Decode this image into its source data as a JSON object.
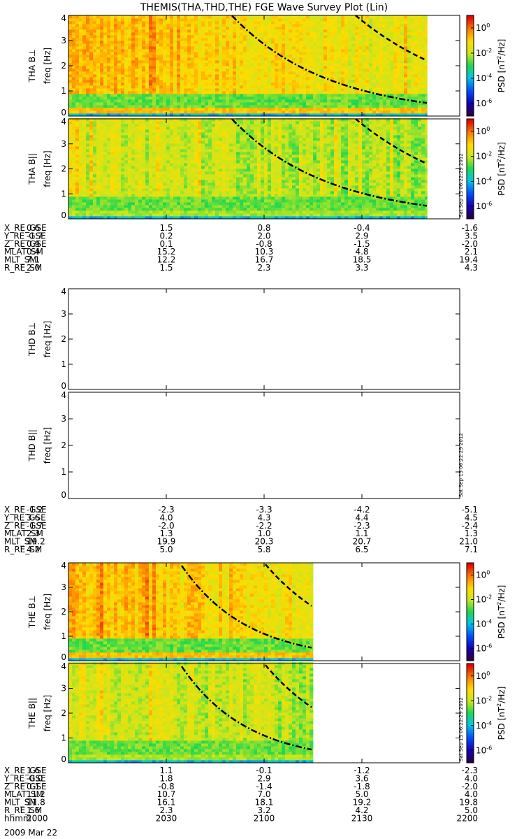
{
  "title": "THEMIS(THA,THD,THE) FGE Wave Survey Plot (Lin)",
  "date_label": "2009 Mar 22",
  "stamp": "Sat Sep 15 06:22:29 2012",
  "colorbar": {
    "label_main": "PSD [nT",
    "label_sup": "2",
    "label_end": "/Hz]",
    "ticks": [
      {
        "base": "10",
        "exp": "0"
      },
      {
        "base": "10",
        "exp": "-2"
      },
      {
        "base": "10",
        "exp": "-4"
      },
      {
        "base": "10",
        "exp": "-6"
      }
    ],
    "scale": "log",
    "range_exp": [
      -7,
      1
    ]
  },
  "chart_data": [
    {
      "type": "heatmap",
      "probe": "THA",
      "ylabel_probe": "THA B⊥",
      "ylabel_unit": "freq [Hz]",
      "ylim": [
        0,
        4
      ],
      "yticks": [
        "0",
        "1",
        "2",
        "3",
        "4"
      ],
      "has_data": true,
      "data_end_time": "2150",
      "colorbar": true,
      "stamp": false
    },
    {
      "type": "heatmap",
      "probe": "THA",
      "ylabel_probe": "THA B||",
      "ylabel_unit": "freq [Hz]",
      "ylim": [
        0,
        4
      ],
      "yticks": [
        "0",
        "1",
        "2",
        "3",
        "4"
      ],
      "has_data": true,
      "data_end_time": "2150",
      "colorbar": true,
      "stamp": true
    },
    {
      "type": "heatmap",
      "probe": "THD",
      "ylabel_probe": "THD B⊥",
      "ylabel_unit": "freq [Hz]",
      "ylim": [
        0,
        4
      ],
      "yticks": [
        "0",
        "1",
        "2",
        "3",
        "4"
      ],
      "has_data": false,
      "colorbar": false,
      "stamp": false
    },
    {
      "type": "heatmap",
      "probe": "THD",
      "ylabel_probe": "THD B||",
      "ylabel_unit": "freq [Hz]",
      "ylim": [
        0,
        4
      ],
      "yticks": [
        "0",
        "1",
        "2",
        "3",
        "4"
      ],
      "has_data": false,
      "colorbar": false,
      "stamp": true
    },
    {
      "type": "heatmap",
      "probe": "THE",
      "ylabel_probe": "THE B⊥",
      "ylabel_unit": "freq [Hz]",
      "ylim": [
        0,
        4
      ],
      "yticks": [
        "0",
        "1",
        "2",
        "3",
        "4"
      ],
      "has_data": true,
      "data_end_time": "2115",
      "colorbar": true,
      "stamp": false
    },
    {
      "type": "heatmap",
      "probe": "THE",
      "ylabel_probe": "THE B||",
      "ylabel_unit": "freq [Hz]",
      "ylim": [
        0,
        4
      ],
      "yticks": [
        "0",
        "1",
        "2",
        "3",
        "4"
      ],
      "has_data": true,
      "data_end_time": "2115",
      "colorbar": true,
      "stamp": true
    }
  ],
  "ephemeris": [
    {
      "probe": "THA",
      "rows": [
        {
          "name": "X_RE_GSE",
          "values": [
            "0.6",
            "1.5",
            "0.8",
            "-0.4",
            "-1.6"
          ]
        },
        {
          "name": "Y_RE_GSE",
          "values": [
            "-1.7",
            "0.2",
            "2.0",
            "2.9",
            "3.5"
          ]
        },
        {
          "name": "Z_RE_GSE",
          "values": [
            "0.9",
            "0.1",
            "-0.8",
            "-1.5",
            "-2.0"
          ]
        },
        {
          "name": "MLAT_SM",
          "values": [
            "0.4",
            "15.2",
            "10.3",
            "4.8",
            "2.1"
          ]
        },
        {
          "name": "MLT_SM",
          "values": [
            "7.1",
            "12.2",
            "16.7",
            "18.5",
            "19.4"
          ]
        },
        {
          "name": "R_RE_SM",
          "values": [
            "2.0",
            "1.5",
            "2.3",
            "3.3",
            "4.3"
          ]
        }
      ]
    },
    {
      "probe": "THD",
      "rows": [
        {
          "name": "X_RE_GSE",
          "values": [
            "-1.2",
            "-2.3",
            "-3.3",
            "-4.2",
            "-5.1"
          ]
        },
        {
          "name": "Y_RE_GSE",
          "values": [
            "3.6",
            "4.0",
            "4.3",
            "4.4",
            "4.5"
          ]
        },
        {
          "name": "Z_RE_GSE",
          "values": [
            "-1.7",
            "-2.0",
            "-2.2",
            "-2.3",
            "-2.4"
          ]
        },
        {
          "name": "MLAT_SM",
          "values": [
            "2.3",
            "1.3",
            "1.0",
            "1.1",
            "1.3"
          ]
        },
        {
          "name": "MLT_SM",
          "values": [
            "19.2",
            "19.9",
            "20.3",
            "20.7",
            "21.0"
          ]
        },
        {
          "name": "R_RE_SM",
          "values": [
            "4.2",
            "5.0",
            "5.8",
            "6.5",
            "7.1"
          ]
        }
      ]
    },
    {
      "probe": "THE",
      "rows": [
        {
          "name": "X_RE_GSE",
          "values": [
            "1.6",
            "1.1",
            "-0.1",
            "-1.2",
            "-2.3"
          ]
        },
        {
          "name": "Y_RE_GSE",
          "values": [
            "-0.0",
            "1.8",
            "2.9",
            "3.6",
            "4.0"
          ]
        },
        {
          "name": "Z_RE_GSE",
          "values": [
            "0.1",
            "-0.8",
            "-1.4",
            "-1.8",
            "-2.0"
          ]
        },
        {
          "name": "MLAT_SM",
          "values": [
            "11.2",
            "10.7",
            "7.0",
            "5.0",
            "4.0"
          ]
        },
        {
          "name": "MLT_SM",
          "values": [
            "11.8",
            "16.1",
            "18.1",
            "19.2",
            "19.8"
          ]
        },
        {
          "name": "R_RE_SM",
          "values": [
            "1.6",
            "2.3",
            "3.2",
            "4.2",
            "5.0"
          ]
        },
        {
          "name": "hhmm",
          "values": [
            "2000",
            "2030",
            "2100",
            "2130",
            "2200"
          ]
        }
      ]
    }
  ],
  "time_axis": {
    "start": "2000",
    "end": "2200",
    "ticks": [
      "2000",
      "2030",
      "2100",
      "2130",
      "2200"
    ]
  },
  "colors": {
    "axis": "#000000",
    "curve": "#000000"
  }
}
